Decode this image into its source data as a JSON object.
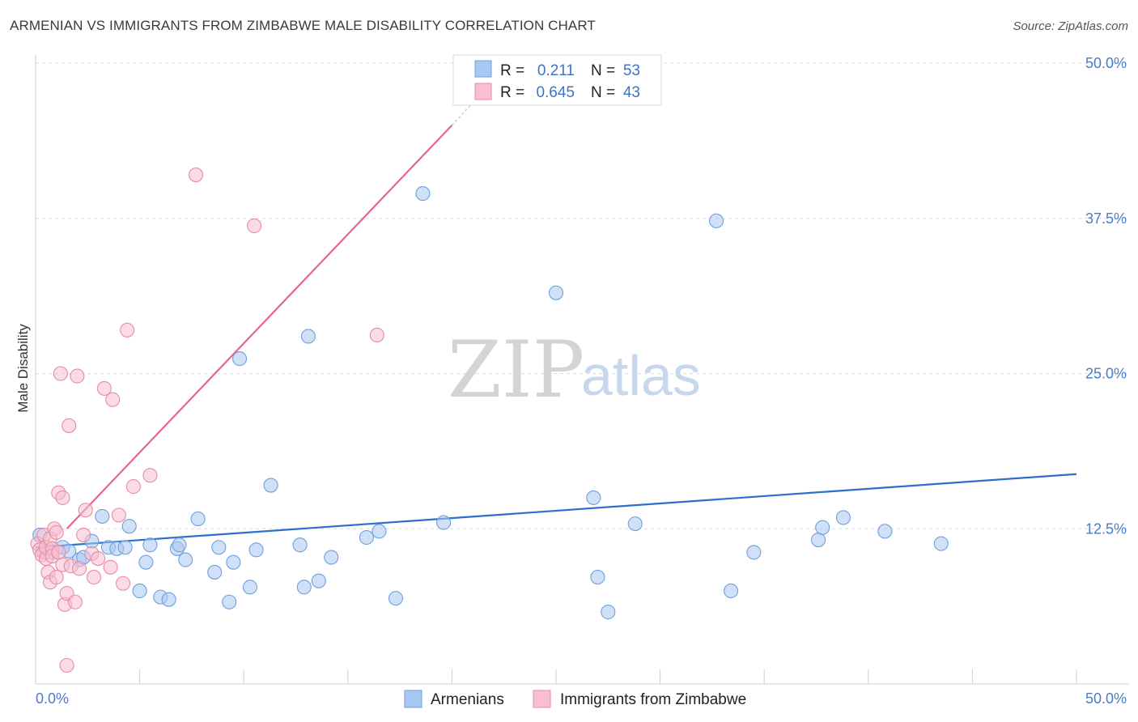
{
  "title": "ARMENIAN VS IMMIGRANTS FROM ZIMBABWE MALE DISABILITY CORRELATION CHART",
  "source": "Source: ZipAtlas.com",
  "watermark": {
    "zip": "ZIP",
    "atlas": "atlas"
  },
  "legend": {
    "rows": [
      {
        "r_label": "R =",
        "r_value": "0.211",
        "n_label": "N =",
        "n_value": "53",
        "color": "#a9c8f0",
        "stroke": "#6f9fdc"
      },
      {
        "r_label": "R =",
        "r_value": "0.645",
        "n_label": "N =",
        "n_value": "43",
        "color": "#f8bfd0",
        "stroke": "#e98aa7"
      }
    ]
  },
  "bottom_legend": [
    {
      "label": "Armenians",
      "color": "#a9c8f0",
      "stroke": "#6f9fdc"
    },
    {
      "label": "Immigrants from Zimbabwe",
      "color": "#f8bfd0",
      "stroke": "#e98aa7"
    }
  ],
  "chart_data": {
    "type": "scatter",
    "title": "ARMENIAN VS IMMIGRANTS FROM ZIMBABWE MALE DISABILITY CORRELATION CHART",
    "xlabel": "",
    "ylabel": "Male Disability",
    "xlim": [
      0,
      50
    ],
    "ylim": [
      0,
      50
    ],
    "x_tick_labels": [
      "0.0%",
      "50.0%"
    ],
    "y_ticks": [
      12.5,
      25.0,
      37.5,
      50.0
    ],
    "y_tick_labels": [
      "12.5%",
      "25.0%",
      "37.5%",
      "50.0%"
    ],
    "grid": "horizontal dashed",
    "legend_position": "top-center",
    "series": [
      {
        "name": "Armenians",
        "color": "#6f9fdc",
        "fill": "#a9c8f0",
        "trend": {
          "x": [
            0,
            50
          ],
          "y": [
            11.0,
            16.9
          ],
          "color": "#2e6fce"
        },
        "points": [
          [
            0.2,
            12.0
          ],
          [
            0.4,
            10.6
          ],
          [
            0.8,
            10.6
          ],
          [
            1.3,
            11.0
          ],
          [
            1.6,
            10.7
          ],
          [
            2.1,
            10.0
          ],
          [
            2.3,
            10.2
          ],
          [
            2.7,
            11.5
          ],
          [
            3.2,
            13.5
          ],
          [
            3.5,
            11.0
          ],
          [
            3.9,
            10.9
          ],
          [
            4.3,
            11.0
          ],
          [
            4.5,
            12.7
          ],
          [
            5.0,
            7.5
          ],
          [
            5.3,
            9.8
          ],
          [
            5.5,
            11.2
          ],
          [
            6.0,
            7.0
          ],
          [
            6.4,
            6.8
          ],
          [
            6.8,
            10.9
          ],
          [
            6.9,
            11.2
          ],
          [
            7.2,
            10.0
          ],
          [
            7.8,
            13.3
          ],
          [
            8.6,
            9.0
          ],
          [
            8.8,
            11.0
          ],
          [
            9.3,
            6.6
          ],
          [
            9.5,
            9.8
          ],
          [
            9.8,
            26.2
          ],
          [
            10.3,
            7.8
          ],
          [
            10.6,
            10.8
          ],
          [
            11.3,
            16.0
          ],
          [
            12.7,
            11.2
          ],
          [
            12.9,
            7.8
          ],
          [
            13.1,
            28.0
          ],
          [
            13.6,
            8.3
          ],
          [
            14.2,
            10.2
          ],
          [
            15.9,
            11.8
          ],
          [
            16.5,
            12.3
          ],
          [
            17.3,
            6.9
          ],
          [
            18.6,
            39.5
          ],
          [
            19.6,
            13.0
          ],
          [
            25.0,
            31.5
          ],
          [
            26.8,
            15.0
          ],
          [
            27.0,
            8.6
          ],
          [
            27.5,
            5.8
          ],
          [
            28.8,
            12.9
          ],
          [
            32.7,
            37.3
          ],
          [
            33.4,
            7.5
          ],
          [
            34.5,
            10.6
          ],
          [
            37.6,
            11.6
          ],
          [
            37.8,
            12.6
          ],
          [
            38.8,
            13.4
          ],
          [
            40.8,
            12.3
          ],
          [
            43.5,
            11.3
          ]
        ]
      },
      {
        "name": "Immigrants from Zimbabwe",
        "color": "#e98aa7",
        "fill": "#f8bfd0",
        "trend": {
          "x": [
            1.5,
            20.0
          ],
          "y": [
            12.5,
            45.0
          ],
          "dashed_x": [
            20.0,
            21.0
          ],
          "dashed_y": [
            45.0,
            46.8
          ],
          "color": "#e8648e"
        },
        "points": [
          [
            0.1,
            11.3
          ],
          [
            0.2,
            10.8
          ],
          [
            0.3,
            10.4
          ],
          [
            0.4,
            12.0
          ],
          [
            0.5,
            10.1
          ],
          [
            0.5,
            11.0
          ],
          [
            0.6,
            9.0
          ],
          [
            0.7,
            11.7
          ],
          [
            0.7,
            8.2
          ],
          [
            0.8,
            10.9
          ],
          [
            0.8,
            10.3
          ],
          [
            0.9,
            12.5
          ],
          [
            1.0,
            12.2
          ],
          [
            1.0,
            8.6
          ],
          [
            1.1,
            10.6
          ],
          [
            1.1,
            15.4
          ],
          [
            1.2,
            25.0
          ],
          [
            1.3,
            9.6
          ],
          [
            1.3,
            15.0
          ],
          [
            1.4,
            6.4
          ],
          [
            1.5,
            7.3
          ],
          [
            1.6,
            20.8
          ],
          [
            1.7,
            9.5
          ],
          [
            1.9,
            6.6
          ],
          [
            1.5,
            1.5
          ],
          [
            2.0,
            24.8
          ],
          [
            2.1,
            9.3
          ],
          [
            2.3,
            12.0
          ],
          [
            2.4,
            14.0
          ],
          [
            2.7,
            10.5
          ],
          [
            2.8,
            8.6
          ],
          [
            3.0,
            10.1
          ],
          [
            3.3,
            23.8
          ],
          [
            3.7,
            22.9
          ],
          [
            3.6,
            9.4
          ],
          [
            4.0,
            13.6
          ],
          [
            4.2,
            8.1
          ],
          [
            4.4,
            28.5
          ],
          [
            4.7,
            15.9
          ],
          [
            5.5,
            16.8
          ],
          [
            7.7,
            41.0
          ],
          [
            10.5,
            36.9
          ],
          [
            16.4,
            28.1
          ]
        ]
      }
    ]
  }
}
